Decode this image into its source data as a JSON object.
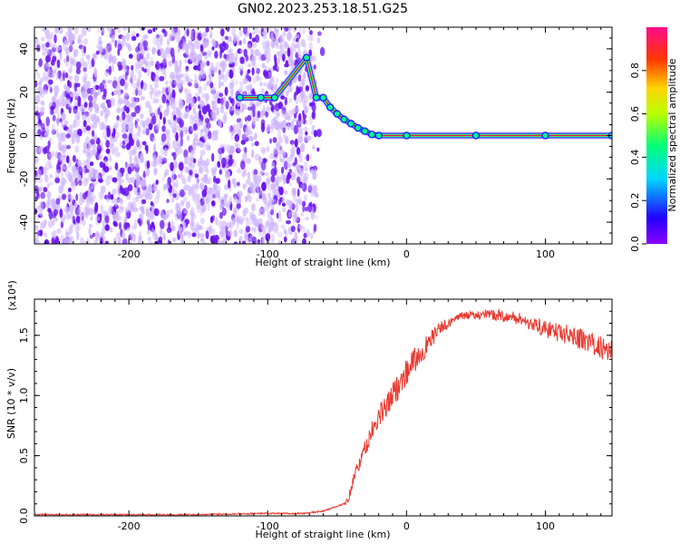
{
  "title": "GN02.2023.253.18.51.G25",
  "colors": {
    "snr_line": "#e8392f",
    "axis": "#000000",
    "noise_light": "#cdb3ff",
    "noise_dark": "#6a14f0",
    "track_core": "#e0105a"
  },
  "colorbar": {
    "label": "Normalized spectral amplitude",
    "ticks": [
      "0.0",
      "0.2",
      "0.4",
      "0.6",
      "0.8"
    ],
    "tick_values": [
      0.0,
      0.2,
      0.4,
      0.6,
      0.8
    ],
    "range": [
      0,
      1
    ],
    "colormap": "gist_rainbow (violet → blue → cyan → green → yellow → orange → red → magenta)"
  },
  "chart_data": [
    {
      "type": "heatmap",
      "xlabel": "Height of straight line (km)",
      "ylabel": "Frequency (Hz)",
      "xlim": [
        -268,
        148
      ],
      "ylim": [
        -50,
        50
      ],
      "xticks": [
        -200,
        -100,
        0,
        100
      ],
      "xtick_labels": [
        "-200",
        "-100",
        "0",
        "100"
      ],
      "yticks": [
        -40,
        -20,
        0,
        20,
        40
      ],
      "ytick_labels": [
        "-40",
        "-20",
        "0",
        "20",
        "40"
      ],
      "noise_region_x": [
        -268,
        -65
      ],
      "track": [
        {
          "x": -120,
          "y": 17.5
        },
        {
          "x": -105,
          "y": 17.5
        },
        {
          "x": -95,
          "y": 17.5
        },
        {
          "x": -72,
          "y": 36
        },
        {
          "x": -65,
          "y": 17.5
        },
        {
          "x": -60,
          "y": 17.5
        },
        {
          "x": -55,
          "y": 13
        },
        {
          "x": -50,
          "y": 10
        },
        {
          "x": -45,
          "y": 7.5
        },
        {
          "x": -40,
          "y": 5.5
        },
        {
          "x": -35,
          "y": 3.5
        },
        {
          "x": -30,
          "y": 2
        },
        {
          "x": -25,
          "y": 0.5
        },
        {
          "x": -20,
          "y": 0
        },
        {
          "x": 0,
          "y": 0
        },
        {
          "x": 50,
          "y": 0
        },
        {
          "x": 100,
          "y": 0
        },
        {
          "x": 148,
          "y": 0
        }
      ]
    },
    {
      "type": "line",
      "xlabel": "Height of straight line (km)",
      "ylabel": "SNR (10 * v/v)",
      "y_multiplier": "(x10⁴)",
      "xlim": [
        -268,
        148
      ],
      "ylim": [
        0,
        1.8
      ],
      "xticks": [
        -200,
        -100,
        0,
        100
      ],
      "xtick_labels": [
        "-200",
        "-100",
        "0",
        "100"
      ],
      "yticks": [
        0.0,
        0.5,
        1.0,
        1.5
      ],
      "ytick_labels": [
        "0.0",
        "0.5",
        "1.0",
        "1.5"
      ],
      "series": [
        {
          "x": [
            -268,
            -220,
            -160,
            -100,
            -75,
            -60,
            -45,
            -42,
            -40,
            -38,
            -35,
            -30,
            -25,
            -20,
            -15,
            -10,
            -5,
            0,
            5,
            10,
            15,
            20,
            25,
            30,
            35,
            40,
            50,
            60,
            70,
            80,
            90,
            100,
            110,
            120,
            130,
            140,
            148
          ],
          "y": [
            0.01,
            0.01,
            0.01,
            0.02,
            0.02,
            0.04,
            0.1,
            0.14,
            0.22,
            0.33,
            0.4,
            0.55,
            0.7,
            0.82,
            0.9,
            1.0,
            1.1,
            1.2,
            1.28,
            1.35,
            1.42,
            1.5,
            1.56,
            1.6,
            1.64,
            1.66,
            1.67,
            1.67,
            1.66,
            1.64,
            1.6,
            1.55,
            1.52,
            1.5,
            1.45,
            1.4,
            1.38
          ]
        }
      ]
    }
  ]
}
